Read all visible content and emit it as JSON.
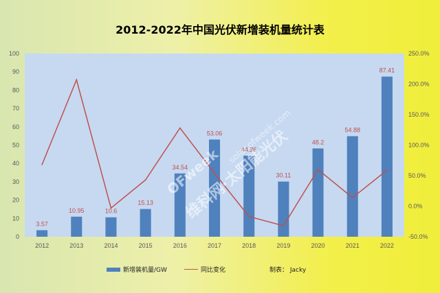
{
  "chart_data": {
    "type": "bar",
    "title": "2012-2022年中国光伏新增装机量统计表",
    "categories": [
      "2012",
      "2013",
      "2014",
      "2015",
      "2016",
      "2017",
      "2018",
      "2019",
      "2020",
      "2021",
      "2022"
    ],
    "series": [
      {
        "name": "新增装机量/GW",
        "type": "bar",
        "axis": "left",
        "color": "#4f81bd",
        "values": [
          3.57,
          10.95,
          10.6,
          15.13,
          34.54,
          53.06,
          44.26,
          30.11,
          48.2,
          54.88,
          87.41
        ],
        "labels": [
          "3.57",
          "10.95",
          "10.6",
          "15.13",
          "34.54",
          "53.06",
          "44.26",
          "30.11",
          "48.2",
          "54.88",
          "87.41"
        ]
      },
      {
        "name": "同比变化",
        "type": "line",
        "axis": "right",
        "color": "#c0504d",
        "values": [
          68,
          207,
          -3,
          43,
          128,
          54,
          -17,
          -32,
          60,
          14,
          59
        ]
      }
    ],
    "ylim": [
      0,
      100
    ],
    "yticks": [
      "0",
      "10",
      "20",
      "30",
      "40",
      "50",
      "60",
      "70",
      "80",
      "90",
      "100"
    ],
    "y2lim": [
      -50,
      250
    ],
    "y2ticks": [
      "-50.0%",
      "0.0%",
      "50.0%",
      "100.0%",
      "150.0%",
      "200.0%",
      "250.0%"
    ],
    "grid": false,
    "legend_position": "bottom",
    "plot_background": "#c6d9f1"
  },
  "legend": {
    "bar_label": "新增装机量/GW",
    "line_label": "同比变化",
    "credit": "制表： Jacky"
  },
  "watermark": {
    "site": "solar.ofweek.com",
    "brand": "OFweek",
    "network": "维科网·太阳能光伏"
  }
}
